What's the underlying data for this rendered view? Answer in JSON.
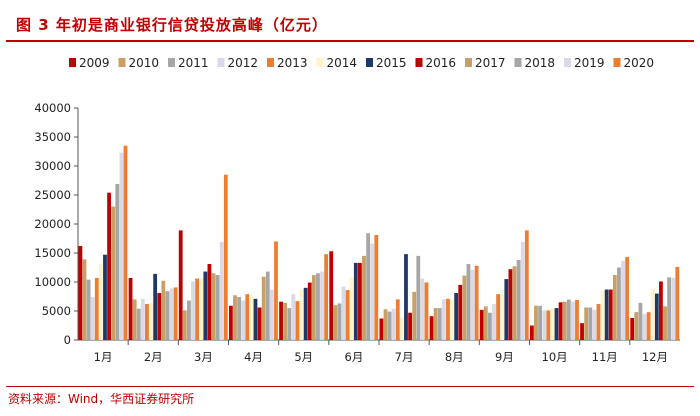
{
  "header": {
    "title": "图 3  年初是商业银行信贷投放高峰（亿元）"
  },
  "footer": {
    "source": "资料来源：Wind，华西证券研究所"
  },
  "chart_data": {
    "type": "bar",
    "title": "图 3  年初是商业银行信贷投放高峰（亿元）",
    "xlabel": "",
    "ylabel": "",
    "ylim": [
      0,
      40000
    ],
    "yticks": [
      "0",
      "5000",
      "10000",
      "15000",
      "20000",
      "25000",
      "30000",
      "35000",
      "40000"
    ],
    "grid": false,
    "legend_position": "top",
    "categories": [
      "1月",
      "2月",
      "3月",
      "4月",
      "5月",
      "6月",
      "7月",
      "8月",
      "9月",
      "10月",
      "11月",
      "12月"
    ],
    "series": [
      {
        "name": "2009",
        "color": "#c00000",
        "values": [
          16200,
          10700,
          18900,
          5900,
          6600,
          15300,
          3700,
          4100,
          5200,
          2500,
          2900,
          3800
        ]
      },
      {
        "name": "2010",
        "color": "#c8a064",
        "values": [
          13900,
          7000,
          5100,
          7700,
          6400,
          6000,
          5300,
          5500,
          5800,
          5900,
          5600,
          4800
        ]
      },
      {
        "name": "2011",
        "color": "#a6a6a6",
        "values": [
          10400,
          5400,
          6800,
          7400,
          5500,
          6300,
          4900,
          5500,
          4700,
          5900,
          5600,
          6400
        ]
      },
      {
        "name": "2012",
        "color": "#d9d9e8",
        "values": [
          7400,
          7100,
          10100,
          6800,
          7900,
          9200,
          5400,
          7000,
          6200,
          5100,
          5200,
          4500
        ]
      },
      {
        "name": "2013",
        "color": "#ed7d31",
        "values": [
          10700,
          6200,
          10600,
          7900,
          6700,
          8600,
          7000,
          7100,
          7900,
          5100,
          6200,
          4800
        ]
      },
      {
        "name": "2014",
        "color": "#fff2cc",
        "values": [
          13200,
          6400,
          10500,
          7700,
          8700,
          10800,
          3900,
          7000,
          8600,
          5500,
          8500,
          8800
        ]
      },
      {
        "name": "2015",
        "color": "#1f3864",
        "values": [
          14700,
          11400,
          11800,
          7100,
          9000,
          13300,
          14800,
          8100,
          10500,
          5500,
          8700,
          8000
        ]
      },
      {
        "name": "2016",
        "color": "#c00000",
        "values": [
          25400,
          8100,
          13100,
          5600,
          9900,
          13300,
          4700,
          9500,
          12200,
          6500,
          8700,
          10100
        ]
      },
      {
        "name": "2017",
        "color": "#c8a064",
        "values": [
          23000,
          10200,
          11500,
          10900,
          11200,
          14500,
          8300,
          11100,
          12700,
          6600,
          11200,
          5800
        ]
      },
      {
        "name": "2018",
        "color": "#a6a6a6",
        "values": [
          26900,
          8400,
          11200,
          11800,
          11500,
          18400,
          14500,
          13100,
          13800,
          6970,
          12500,
          10800
        ]
      },
      {
        "name": "2019",
        "color": "#d9d9e8",
        "values": [
          32300,
          8900,
          16900,
          8700,
          11800,
          16600,
          10600,
          12100,
          16900,
          6613,
          13600,
          10700
        ]
      },
      {
        "name": "2020",
        "color": "#ed7d31",
        "values": [
          33500,
          9057,
          28500,
          17000,
          14800,
          18100,
          9927,
          12800,
          18900,
          6898,
          14300,
          12600
        ]
      }
    ]
  }
}
